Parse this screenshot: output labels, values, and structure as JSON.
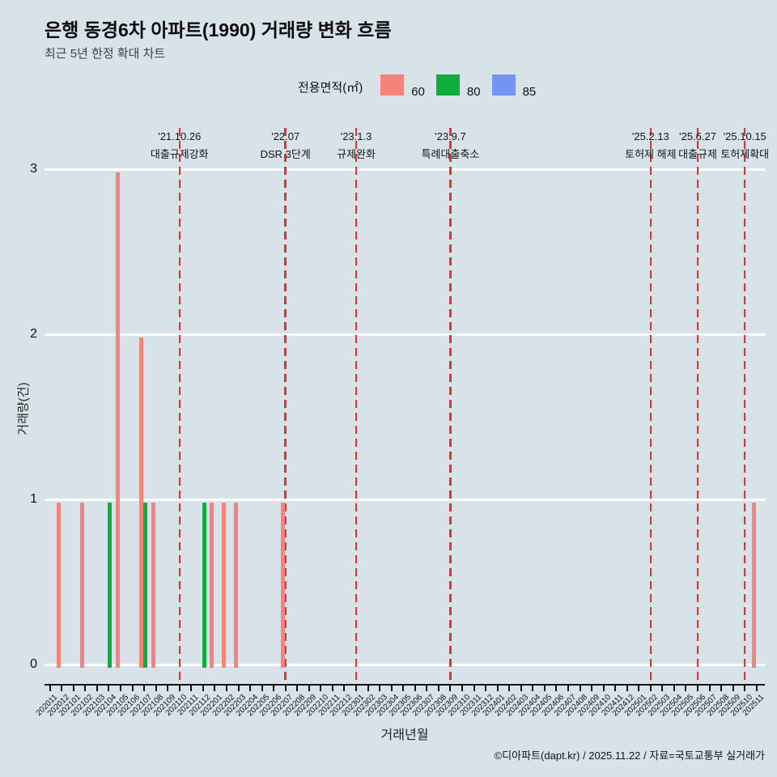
{
  "header": {
    "title": "은행 동경6차 아파트(1990) 거래량 변화 흐름",
    "subtitle": "최근 5년 한정 확대 차트"
  },
  "legend": {
    "label": "전용면적(㎡)",
    "items": [
      {
        "name": "60",
        "color": "#f5837b"
      },
      {
        "name": "80",
        "color": "#0fae3c"
      },
      {
        "name": "85",
        "color": "#7494ef"
      }
    ]
  },
  "chart_data": {
    "type": "bar",
    "title": "은행 동경6차 아파트(1990) 거래량 변화 흐름",
    "subtitle": "최근 5년 한정 확대 차트",
    "xlabel": "거래년월",
    "ylabel": "거래량(건)",
    "ylim": [
      0,
      3.2
    ],
    "yticks": [
      0,
      1,
      2,
      3
    ],
    "grid": "horizontal-white",
    "legend_position": "top",
    "categories": [
      "202011",
      "202012",
      "202101",
      "202102",
      "202103",
      "202104",
      "202105",
      "202106",
      "202107",
      "202108",
      "202109",
      "202110",
      "202111",
      "202112",
      "202201",
      "202202",
      "202203",
      "202204",
      "202205",
      "202206",
      "202207",
      "202208",
      "202209",
      "202210",
      "202211",
      "202212",
      "202301",
      "202302",
      "202303",
      "202304",
      "202305",
      "202306",
      "202307",
      "202308",
      "202309",
      "202310",
      "202311",
      "202312",
      "202401",
      "202402",
      "202403",
      "202404",
      "202405",
      "202406",
      "202407",
      "202408",
      "202409",
      "202410",
      "202411",
      "202412",
      "202501",
      "202502",
      "202503",
      "202504",
      "202505",
      "202506",
      "202507",
      "202508",
      "202509",
      "202510",
      "202511"
    ],
    "series": [
      {
        "name": "60",
        "color": "#f5837b",
        "points": {
          "202012": 1,
          "202102": 1,
          "202105": 3,
          "202107": 2,
          "202108": 1,
          "202201": 1,
          "202202": 1,
          "202203": 1,
          "202207": 1,
          "202511": 1
        }
      },
      {
        "name": "80",
        "color": "#0fae3c",
        "points": {
          "202104": 1,
          "202107": 1,
          "202112": 1
        }
      },
      {
        "name": "85",
        "color": "#7494ef",
        "points": {}
      }
    ],
    "annotations": [
      {
        "month": "202110",
        "date": "'21.10.26",
        "label": "대출규제강화"
      },
      {
        "month": "202207",
        "date": "'22.07",
        "label": "DSR 3단계"
      },
      {
        "month": "202301",
        "date": "'23.1.3",
        "label": "규제완화"
      },
      {
        "month": "202309",
        "date": "'23.9.7",
        "label": "특례대출축소"
      },
      {
        "month": "202502",
        "date": "'25.2.13",
        "label": "토허제 해제"
      },
      {
        "month": "202506",
        "date": "'25.6.27",
        "label": "대출규제"
      },
      {
        "month": "202510",
        "date": "'25.10.15",
        "label": "토허제확대"
      }
    ],
    "annotation_line_color": "#e8312a"
  },
  "footer": {
    "credit": "©디아파트(dapt.kr) / 2025.11.22 / 자료=국토교통부 실거래가"
  }
}
